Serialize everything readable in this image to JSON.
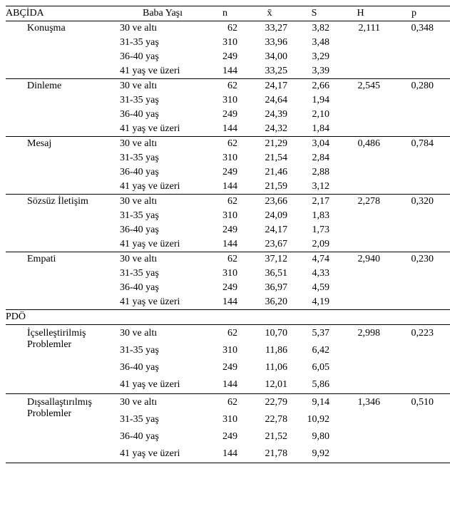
{
  "header": {
    "section_col": "ABÇİDA",
    "age_col": "Baba Yaşı",
    "n": "n",
    "xbar": "x̄",
    "s": "S",
    "h": "H",
    "p": "p"
  },
  "pdo_label": "PDÖ",
  "age_labels": [
    "30 ve altı",
    "31-35 yaş",
    "36-40 yaş",
    "41 yaş ve üzeri"
  ],
  "groups": [
    {
      "name": "Konuşma",
      "section": "abcida",
      "H": "2,111",
      "p": "0,348",
      "rows": [
        {
          "n": "62",
          "x": "33,27",
          "s": "3,82"
        },
        {
          "n": "310",
          "x": "33,96",
          "s": "3,48"
        },
        {
          "n": "249",
          "x": "34,00",
          "s": "3,29"
        },
        {
          "n": "144",
          "x": "33,25",
          "s": "3,39"
        }
      ]
    },
    {
      "name": "Dinleme",
      "section": "abcida",
      "H": "2,545",
      "p": "0,280",
      "rows": [
        {
          "n": "62",
          "x": "24,17",
          "s": "2,66"
        },
        {
          "n": "310",
          "x": "24,64",
          "s": "1,94"
        },
        {
          "n": "249",
          "x": "24,39",
          "s": "2,10"
        },
        {
          "n": "144",
          "x": "24,32",
          "s": "1,84"
        }
      ]
    },
    {
      "name": "Mesaj",
      "section": "abcida",
      "H": "0,486",
      "p": "0,784",
      "rows": [
        {
          "n": "62",
          "x": "21,29",
          "s": "3,04"
        },
        {
          "n": "310",
          "x": "21,54",
          "s": "2,84"
        },
        {
          "n": "249",
          "x": "21,46",
          "s": "2,88"
        },
        {
          "n": "144",
          "x": "21,59",
          "s": "3,12"
        }
      ]
    },
    {
      "name": "Sözsüz İletişim",
      "section": "abcida",
      "H": "2,278",
      "p": "0,320",
      "rows": [
        {
          "n": "62",
          "x": "23,66",
          "s": "2,17"
        },
        {
          "n": "310",
          "x": "24,09",
          "s": "1,83"
        },
        {
          "n": "249",
          "x": "24,17",
          "s": "1,73"
        },
        {
          "n": "144",
          "x": "23,67",
          "s": "2,09"
        }
      ]
    },
    {
      "name": "Empati",
      "section": "abcida",
      "H": "2,940",
      "p": "0,230",
      "rows": [
        {
          "n": "62",
          "x": "37,12",
          "s": "4,74"
        },
        {
          "n": "310",
          "x": "36,51",
          "s": "4,33"
        },
        {
          "n": "249",
          "x": "36,97",
          "s": "4,59"
        },
        {
          "n": "144",
          "x": "36,20",
          "s": "4,19"
        }
      ]
    },
    {
      "name": "İçselleştirilmiş Problemler",
      "section": "pdo",
      "spaced": true,
      "H": "2,998",
      "p": "0,223",
      "rows": [
        {
          "n": "62",
          "x": "10,70",
          "s": "5,37"
        },
        {
          "n": "310",
          "x": "11,86",
          "s": "6,42"
        },
        {
          "n": "249",
          "x": "11,06",
          "s": "6,05"
        },
        {
          "n": "144",
          "x": "12,01",
          "s": "5,86"
        }
      ]
    },
    {
      "name": "Dışsallaştırılmış Problemler",
      "section": "pdo",
      "spaced": true,
      "H": "1,346",
      "p": "0,510",
      "rows": [
        {
          "n": "62",
          "x": "22,79",
          "s": "9,14"
        },
        {
          "n": "310",
          "x": "22,78",
          "s": "10,92"
        },
        {
          "n": "249",
          "x": "21,52",
          "s": "9,80"
        },
        {
          "n": "144",
          "x": "21,78",
          "s": "9,92"
        }
      ]
    }
  ],
  "style": {
    "font_family": "Times New Roman",
    "font_size_pt": 11,
    "text_color": "#000000",
    "background_color": "#ffffff",
    "rule_color": "#000000"
  }
}
